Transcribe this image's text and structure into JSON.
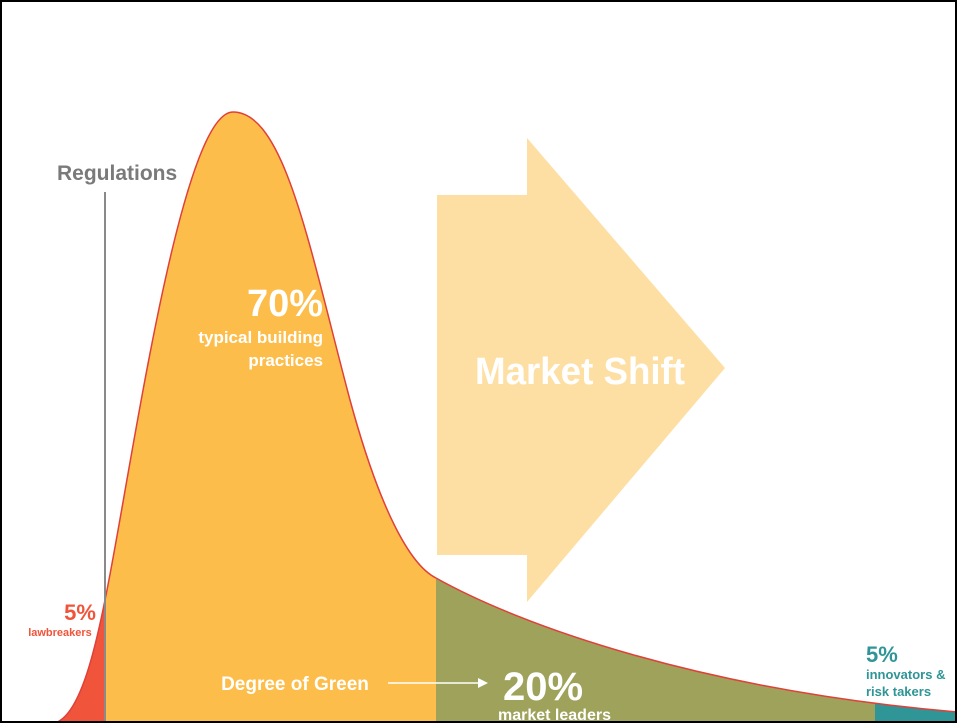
{
  "regulations": "Regulations",
  "market_shift": "Market Shift",
  "degree_of_green": "Degree of Green",
  "segments": [
    {
      "percent": "5%",
      "lines": [
        "lawbreakers"
      ]
    },
    {
      "percent": "70%",
      "lines": [
        "typical building",
        "practices"
      ]
    },
    {
      "percent": "20%",
      "lines": [
        "market leaders"
      ]
    },
    {
      "percent": "5%",
      "lines": [
        "innovators &",
        "risk takers"
      ]
    }
  ]
}
